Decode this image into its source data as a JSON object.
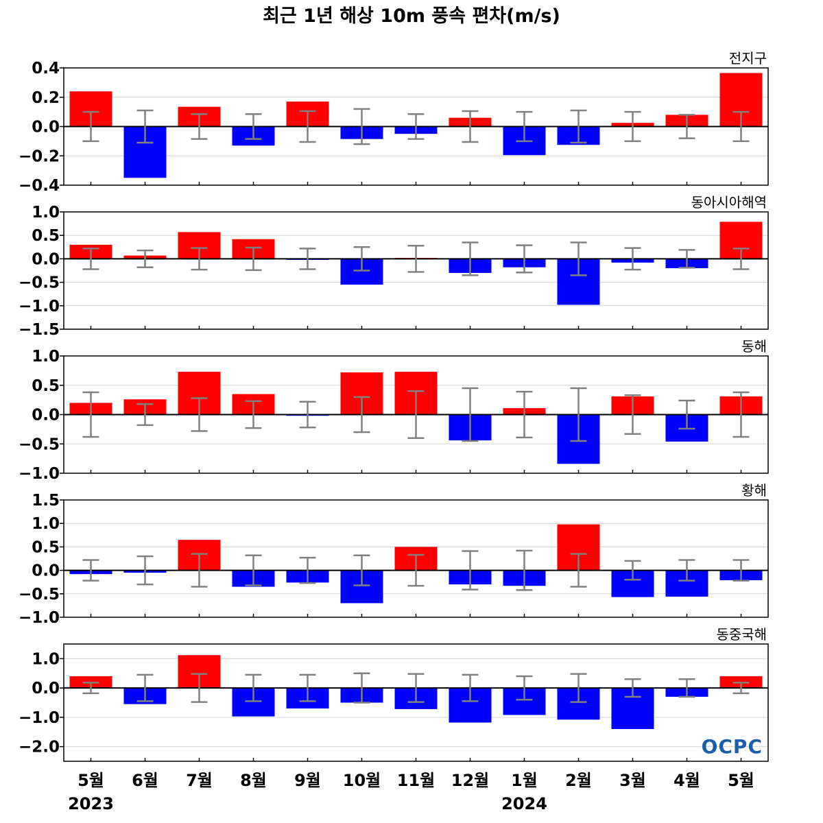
{
  "figure": {
    "title": "최근 1년 해상 10m 풍속 편차(m/s)",
    "logo_text": "OCPC",
    "years": [
      {
        "label": "2023",
        "at_index": 0
      },
      {
        "label": "2024",
        "at_index": 8
      }
    ],
    "colors": {
      "positive": "#ff0000",
      "negative": "#0000ff",
      "errorbar": "#808080",
      "zero_line": "#000000",
      "grid": "#d3d3d3",
      "logo": "#1a5fa8"
    }
  },
  "chart_data": [
    {
      "type": "bar",
      "title": "전지구",
      "categories": [
        "5월",
        "6월",
        "7월",
        "8월",
        "9월",
        "10월",
        "11월",
        "12월",
        "1월",
        "2월",
        "3월",
        "4월",
        "5월"
      ],
      "values": [
        0.24,
        -0.35,
        0.135,
        -0.13,
        0.17,
        -0.085,
        -0.05,
        0.06,
        -0.195,
        -0.125,
        0.025,
        0.08,
        0.365
      ],
      "error_bars": [
        0.1,
        0.11,
        0.085,
        0.085,
        0.105,
        0.12,
        0.085,
        0.105,
        0.1,
        0.11,
        0.1,
        0.08,
        0.1
      ],
      "ylim": [
        -0.4,
        0.4
      ],
      "yticks": [
        0.4,
        0.2,
        0.0,
        -0.2,
        -0.4
      ],
      "ytick_labels": [
        "0.4",
        "0.2",
        "0.0",
        "−0.2",
        "−0.4"
      ],
      "grid": true
    },
    {
      "type": "bar",
      "title": "동아시아해역",
      "categories": [
        "5월",
        "6월",
        "7월",
        "8월",
        "9월",
        "10월",
        "11월",
        "12월",
        "1월",
        "2월",
        "3월",
        "4월",
        "5월"
      ],
      "values": [
        0.3,
        0.07,
        0.57,
        0.42,
        -0.02,
        -0.55,
        0.02,
        -0.3,
        -0.18,
        -0.98,
        -0.08,
        -0.2,
        0.79
      ],
      "error_bars": [
        0.22,
        0.18,
        0.23,
        0.24,
        0.22,
        0.25,
        0.28,
        0.35,
        0.29,
        0.35,
        0.23,
        0.19,
        0.22
      ],
      "ylim": [
        -1.5,
        1.0
      ],
      "yticks": [
        1.0,
        0.5,
        0.0,
        -0.5,
        -1.0,
        -1.5
      ],
      "ytick_labels": [
        "1.0",
        "0.5",
        "0.0",
        "−0.5",
        "−1.0",
        "−1.5"
      ],
      "grid": true
    },
    {
      "type": "bar",
      "title": "동해",
      "categories": [
        "5월",
        "6월",
        "7월",
        "8월",
        "9월",
        "10월",
        "11월",
        "12월",
        "1월",
        "2월",
        "3월",
        "4월",
        "5월"
      ],
      "values": [
        0.2,
        0.26,
        0.73,
        0.35,
        -0.02,
        0.72,
        0.73,
        -0.44,
        0.11,
        -0.84,
        0.31,
        -0.46,
        0.31
      ],
      "error_bars": [
        0.38,
        0.18,
        0.28,
        0.23,
        0.22,
        0.3,
        0.4,
        0.45,
        0.39,
        0.45,
        0.33,
        0.24,
        0.38
      ],
      "ylim": [
        -1.0,
        1.0
      ],
      "yticks": [
        1.0,
        0.5,
        0.0,
        -0.5,
        -1.0
      ],
      "ytick_labels": [
        "1.0",
        "0.5",
        "0.0",
        "−0.5",
        "−1.0"
      ],
      "grid": true
    },
    {
      "type": "bar",
      "title": "황해",
      "categories": [
        "5월",
        "6월",
        "7월",
        "8월",
        "9월",
        "10월",
        "11월",
        "12월",
        "1월",
        "2월",
        "3월",
        "4월",
        "5월"
      ],
      "values": [
        -0.08,
        -0.05,
        0.65,
        -0.35,
        -0.26,
        -0.7,
        0.5,
        -0.3,
        -0.33,
        0.98,
        -0.57,
        -0.56,
        -0.21
      ],
      "error_bars": [
        0.22,
        0.3,
        0.35,
        0.32,
        0.27,
        0.32,
        0.33,
        0.41,
        0.42,
        0.35,
        0.2,
        0.22,
        0.22
      ],
      "ylim": [
        -1.0,
        1.5
      ],
      "yticks": [
        1.5,
        1.0,
        0.5,
        0.0,
        -0.5,
        -1.0
      ],
      "ytick_labels": [
        "1.5",
        "1.0",
        "0.5",
        "0.0",
        "−0.5",
        "−1.0"
      ],
      "grid": true
    },
    {
      "type": "bar",
      "title": "동중국해",
      "categories": [
        "5월",
        "6월",
        "7월",
        "8월",
        "9월",
        "10월",
        "11월",
        "12월",
        "1월",
        "2월",
        "3월",
        "4월",
        "5월"
      ],
      "values": [
        0.4,
        -0.55,
        1.12,
        -0.97,
        -0.7,
        -0.5,
        -0.72,
        -1.18,
        -0.92,
        -1.08,
        -1.4,
        -0.3,
        0.4
      ],
      "error_bars": [
        0.18,
        0.45,
        0.48,
        0.45,
        0.45,
        0.5,
        0.48,
        0.45,
        0.4,
        0.48,
        0.3,
        0.3,
        0.18
      ],
      "ylim": [
        -2.5,
        1.5
      ],
      "yticks": [
        1.0,
        0.0,
        -1.0,
        -2.0
      ],
      "ytick_labels": [
        "1.0",
        "0.0",
        "−1.0",
        "−2.0"
      ],
      "grid": true
    }
  ]
}
